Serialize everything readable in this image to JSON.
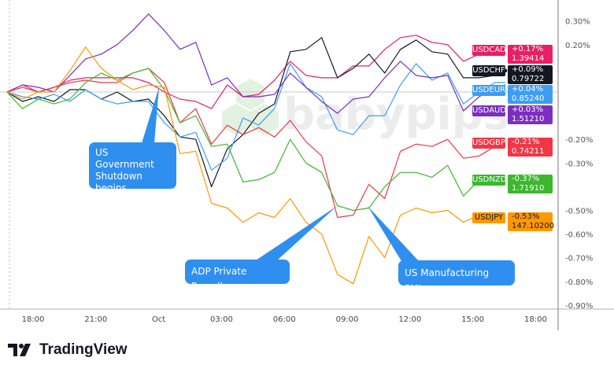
{
  "chart_data": {
    "type": "line",
    "title": "",
    "xlabel": "",
    "ylabel": "",
    "y_unit": "%",
    "ylim": [
      -0.9,
      0.3
    ],
    "grid": false,
    "y_ticks": [
      "0.30%",
      "0.20%",
      "-0.20%",
      "-0.30%",
      "-0.50%",
      "-0.60%",
      "-0.70%",
      "-0.80%",
      "-0.90%"
    ],
    "x_ticks": [
      "18:00",
      "21:00",
      "Oct",
      "03:00",
      "06:00",
      "09:00",
      "12:00",
      "15:00",
      "18:00"
    ],
    "x": [
      "16:45",
      "17:30",
      "18:15",
      "19:00",
      "19:45",
      "20:30",
      "21:15",
      "22:00",
      "22:45",
      "23:30",
      "00:15",
      "01:00",
      "01:45",
      "02:30",
      "03:15",
      "04:00",
      "04:45",
      "05:30",
      "06:15",
      "07:00",
      "07:45",
      "08:30",
      "09:15",
      "10:00",
      "10:45",
      "11:30",
      "12:15",
      "13:00",
      "13:45",
      "14:30",
      "15:15",
      "16:00",
      "16:30"
    ],
    "series": [
      {
        "name": "USDCAD",
        "color": "#e91e63",
        "change": "+0.17%",
        "price": "1.39414",
        "values": [
          0,
          0.03,
          0,
          0.02,
          0.05,
          0.06,
          0.06,
          0.06,
          0.06,
          0.04,
          0,
          -0.03,
          -0.04,
          -0.07,
          0.03,
          -0.02,
          -0.01,
          0.05,
          0.13,
          0.07,
          0.06,
          0.06,
          0.11,
          0.11,
          0.18,
          0.23,
          0.24,
          0.21,
          0.2,
          0.13,
          0.16,
          0.17,
          0.17
        ]
      },
      {
        "name": "USDCHF",
        "color": "#131722",
        "change": "+0.09%",
        "price": "0.79722",
        "values": [
          0,
          -0.04,
          -0.02,
          -0.04,
          0.01,
          0.01,
          -0.03,
          0,
          -0.04,
          -0.03,
          -0.1,
          -0.19,
          -0.2,
          -0.4,
          -0.24,
          -0.18,
          -0.09,
          -0.05,
          0.17,
          0.18,
          0.23,
          0.06,
          0.1,
          0.16,
          0.08,
          0.18,
          0.22,
          0.17,
          0.16,
          0.06,
          0.06,
          0.07,
          0.09
        ]
      },
      {
        "name": "USDEUR",
        "color": "#3d9df2",
        "change": "+0.04%",
        "price": "0.85240",
        "values": [
          0,
          -0.02,
          -0.03,
          -0.01,
          -0.04,
          0.01,
          -0.03,
          -0.05,
          -0.04,
          -0.04,
          -0.13,
          -0.19,
          -0.17,
          -0.33,
          -0.28,
          -0.11,
          -0.14,
          -0.07,
          0.12,
          0.02,
          -0.02,
          -0.16,
          -0.18,
          -0.1,
          -0.1,
          0.03,
          0.12,
          0.05,
          0.08,
          -0.05,
          0,
          0.04,
          0.04
        ]
      },
      {
        "name": "USDAUD",
        "color": "#7b2fbf",
        "change": "+0.03%",
        "price": "1.51210",
        "values": [
          0,
          0.03,
          0.02,
          0,
          0.07,
          0.14,
          0.16,
          0.2,
          0.26,
          0.33,
          0.26,
          0.18,
          0.21,
          0.03,
          0.06,
          -0.02,
          -0.02,
          -0.01,
          0.08,
          0.02,
          -0.04,
          -0.09,
          -0.03,
          -0.02,
          0.06,
          0.13,
          0.07,
          0.06,
          0.07,
          -0.08,
          -0.02,
          0.02,
          0.03
        ]
      },
      {
        "name": "USDGBP",
        "color": "#f23645",
        "change": "-0.21%",
        "price": "0.74211",
        "values": [
          0,
          0.02,
          0,
          0.02,
          0.04,
          0.05,
          0.04,
          0.04,
          0.08,
          0.1,
          0.04,
          -0.13,
          -0.07,
          -0.22,
          -0.14,
          -0.18,
          -0.15,
          -0.19,
          -0.12,
          -0.21,
          -0.27,
          -0.53,
          -0.52,
          -0.39,
          -0.45,
          -0.25,
          -0.22,
          -0.23,
          -0.2,
          -0.28,
          -0.27,
          -0.23,
          -0.21
        ]
      },
      {
        "name": "USDNZD",
        "color": "#3cb72e",
        "change": "-0.37%",
        "price": "1.71910",
        "values": [
          0,
          -0.07,
          -0.03,
          -0.05,
          -0.03,
          0.04,
          0.08,
          0.05,
          0.08,
          0.1,
          0.01,
          -0.13,
          -0.1,
          -0.23,
          -0.22,
          -0.38,
          -0.37,
          -0.34,
          -0.2,
          -0.3,
          -0.34,
          -0.48,
          -0.5,
          -0.49,
          -0.4,
          -0.34,
          -0.34,
          -0.36,
          -0.31,
          -0.44,
          -0.37,
          -0.39,
          -0.37
        ]
      },
      {
        "name": "USDJPY",
        "color": "#ff9800",
        "change": "-0.53%",
        "price": "147.10200",
        "values": [
          0,
          -0.03,
          0,
          0,
          0.09,
          0.19,
          0.1,
          0.05,
          0.01,
          0.03,
          0.02,
          -0.26,
          -0.25,
          -0.47,
          -0.49,
          -0.55,
          -0.51,
          -0.53,
          -0.45,
          -0.55,
          -0.6,
          -0.77,
          -0.81,
          -0.61,
          -0.7,
          -0.52,
          -0.49,
          -0.51,
          -0.5,
          -0.55,
          -0.52,
          -0.53,
          -0.53
        ]
      }
    ],
    "annotations": [
      {
        "text": "US Government Shutdown begins",
        "at": "00:15"
      },
      {
        "text": "ADP Private Payrolls",
        "at": "08:15"
      },
      {
        "text": "US Manufacturing PMI",
        "at": "09:45"
      }
    ]
  },
  "callouts": {
    "shutdown": "US Government Shutdown begins",
    "adp": "ADP Private Payrolls",
    "pmi": "US Manufacturing PMI"
  },
  "watermark": "babypips",
  "brand": "TradingView",
  "colors": {
    "callout": "#2f8ff0"
  }
}
